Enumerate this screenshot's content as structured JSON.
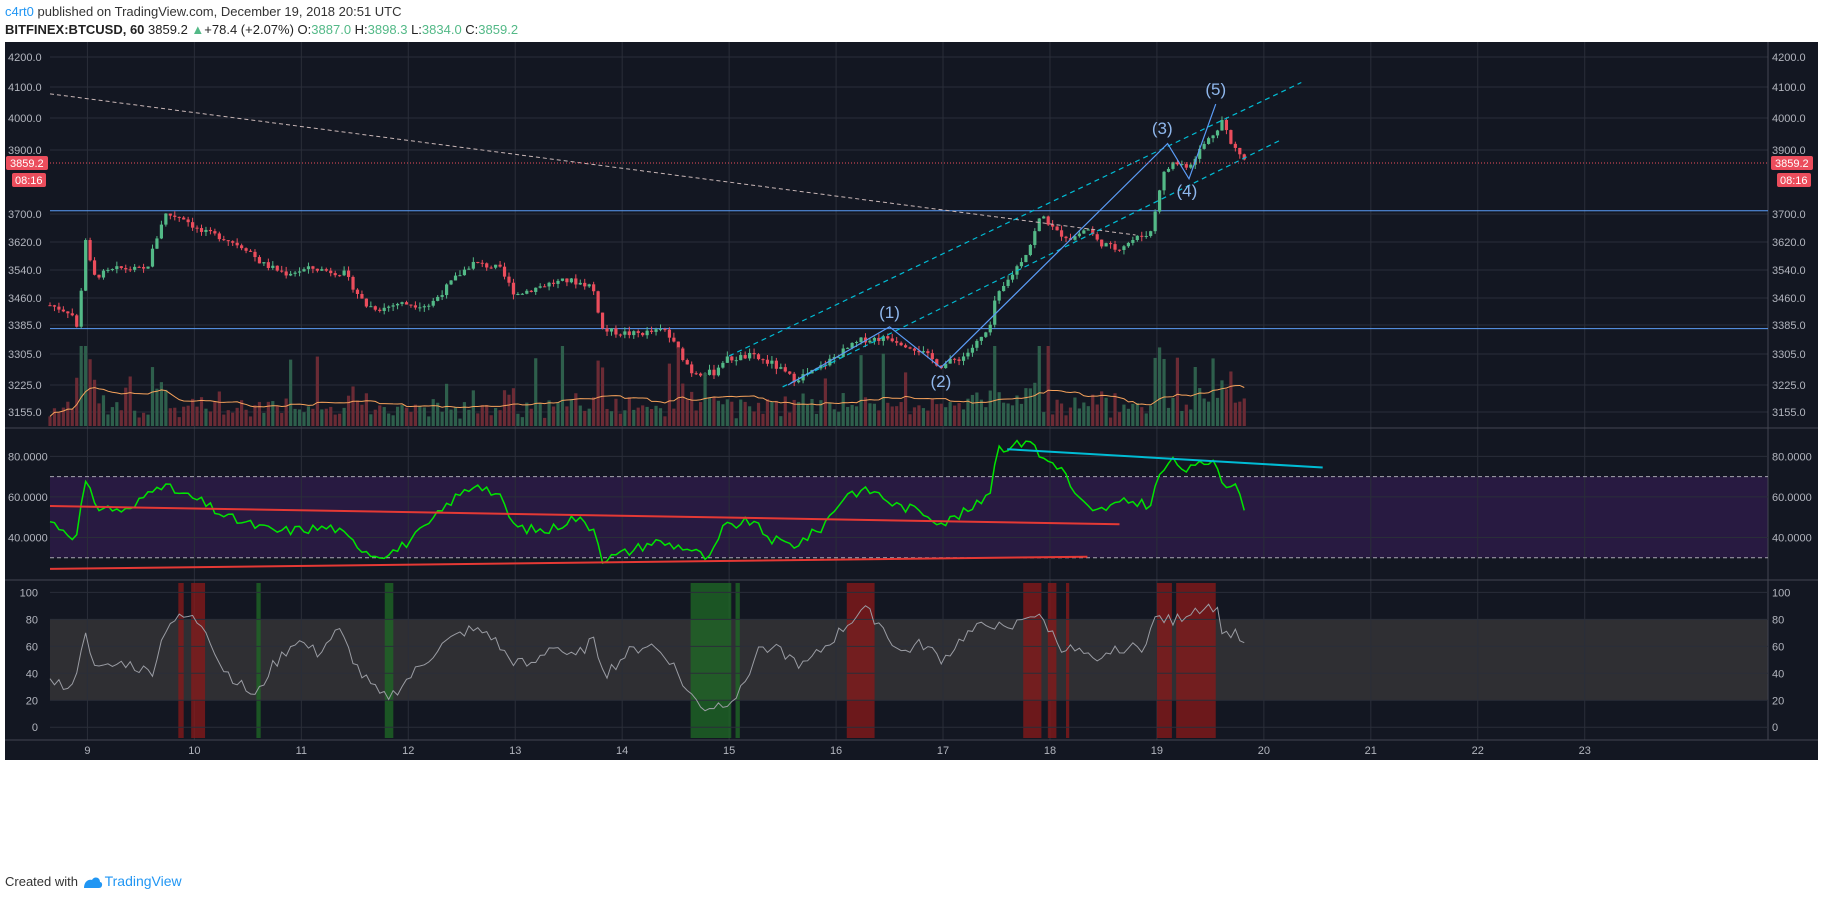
{
  "header": {
    "author": "c4rt0",
    "published_text": "published on TradingView.com, December 19, 2018 20:51 UTC",
    "symbol": "BITFINEX:BTCUSD, 60",
    "last": "3859.2",
    "change": "+78.4 (+2.07%)",
    "o_label": "O:",
    "o_value": "3887.0",
    "h_label": "H:",
    "h_value": "3898.3",
    "l_label": "L:",
    "l_value": "3834.0",
    "c_label": "C:",
    "c_value": "3859.2"
  },
  "footer": {
    "created_with": "Created with",
    "brand": "TradingView"
  },
  "colors": {
    "background": "#131722",
    "grid": "#2a2e39",
    "up": "#53b987",
    "down": "#eb4d5c",
    "wave": "#5b9cf6",
    "channel": "#00bcd4",
    "rsi": "#00e600",
    "rsi_band": "#2b1b45",
    "stoch_band": "#2f2f33",
    "red_zone": "#8b1a1a",
    "green_zone": "#1f6b25",
    "ma": "#f7a35c",
    "price_badge": "#eb4d5c"
  },
  "chart_data": [
    {
      "type": "candlestick",
      "title": "BITFINEX:BTCUSD, 60",
      "x_ticks": [
        9,
        10,
        11,
        12,
        13,
        14,
        15,
        16,
        17,
        18,
        19,
        20,
        21,
        22,
        23
      ],
      "xlim": [
        8.65,
        23.75
      ],
      "price_ticks": [
        4200.0,
        4100.0,
        4000.0,
        3900.0,
        3700.0,
        3620.0,
        3540.0,
        3460.0,
        3385.0,
        3305.0,
        3225.0,
        3155.0
      ],
      "price_labels": [
        "4200.0",
        "4100.0",
        "4000.0",
        "3900.0",
        "3700.0",
        "3620.0",
        "3540.0",
        "3460.0",
        "3385.0",
        "3305.0",
        "3225.0",
        "3155.0"
      ],
      "last_price": 3859.2,
      "last_price_label": "3859.2",
      "countdown": "08:16",
      "horizontal_levels": [
        3710,
        3375
      ],
      "price_path": [
        [
          8.65,
          3440
        ],
        [
          8.85,
          3420
        ],
        [
          8.92,
          3360
        ],
        [
          8.97,
          3650
        ],
        [
          9.05,
          3520
        ],
        [
          9.3,
          3545
        ],
        [
          9.55,
          3540
        ],
        [
          9.72,
          3700
        ],
        [
          9.9,
          3690
        ],
        [
          10.05,
          3650
        ],
        [
          10.25,
          3635
        ],
        [
          10.5,
          3600
        ],
        [
          10.62,
          3560
        ],
        [
          10.85,
          3530
        ],
        [
          11.1,
          3545
        ],
        [
          11.4,
          3530
        ],
        [
          11.6,
          3440
        ],
        [
          11.75,
          3430
        ],
        [
          11.9,
          3445
        ],
        [
          12.2,
          3440
        ],
        [
          12.45,
          3520
        ],
        [
          12.6,
          3560
        ],
        [
          12.85,
          3545
        ],
        [
          13.0,
          3470
        ],
        [
          13.3,
          3500
        ],
        [
          13.5,
          3510
        ],
        [
          13.72,
          3495
        ],
        [
          13.82,
          3370
        ],
        [
          14.1,
          3360
        ],
        [
          14.4,
          3370
        ],
        [
          14.65,
          3260
        ],
        [
          14.85,
          3255
        ],
        [
          14.95,
          3290
        ],
        [
          15.2,
          3300
        ],
        [
          15.4,
          3280
        ],
        [
          15.6,
          3240
        ],
        [
          15.8,
          3260
        ],
        [
          16.05,
          3310
        ],
        [
          16.25,
          3345
        ],
        [
          16.5,
          3350
        ],
        [
          16.75,
          3320
        ],
        [
          16.98,
          3275
        ],
        [
          17.2,
          3300
        ],
        [
          17.38,
          3355
        ],
        [
          17.45,
          3380
        ],
        [
          17.48,
          3450
        ],
        [
          17.65,
          3530
        ],
        [
          17.8,
          3600
        ],
        [
          17.92,
          3700
        ],
        [
          18.05,
          3650
        ],
        [
          18.2,
          3630
        ],
        [
          18.35,
          3660
        ],
        [
          18.45,
          3620
        ],
        [
          18.62,
          3600
        ],
        [
          18.8,
          3630
        ],
        [
          18.95,
          3650
        ],
        [
          19.0,
          3740
        ],
        [
          19.05,
          3820
        ],
        [
          19.15,
          3860
        ],
        [
          19.3,
          3850
        ],
        [
          19.42,
          3910
        ],
        [
          19.55,
          3960
        ],
        [
          19.62,
          4000
        ],
        [
          19.68,
          3920
        ],
        [
          19.75,
          3900
        ],
        [
          19.84,
          3859
        ]
      ],
      "volume_ma": true
    },
    {
      "type": "line",
      "name": "RSI",
      "ylim": [
        20,
        92
      ],
      "y_ticks": [
        80,
        60,
        40
      ],
      "y_tick_labels": [
        "80.0000",
        "60.0000",
        "40.0000"
      ],
      "band": [
        30,
        70
      ],
      "values": [
        [
          8.65,
          48
        ],
        [
          8.9,
          40
        ],
        [
          8.97,
          67
        ],
        [
          9.1,
          55
        ],
        [
          9.4,
          53
        ],
        [
          9.65,
          67
        ],
        [
          9.85,
          62
        ],
        [
          10.05,
          58
        ],
        [
          10.3,
          50
        ],
        [
          10.55,
          46
        ],
        [
          10.75,
          43
        ],
        [
          11.0,
          44
        ],
        [
          11.3,
          45
        ],
        [
          11.5,
          37
        ],
        [
          11.7,
          31
        ],
        [
          11.9,
          34
        ],
        [
          12.15,
          44
        ],
        [
          12.4,
          58
        ],
        [
          12.65,
          67
        ],
        [
          12.85,
          60
        ],
        [
          13.0,
          45
        ],
        [
          13.3,
          43
        ],
        [
          13.55,
          50
        ],
        [
          13.75,
          44
        ],
        [
          13.82,
          29
        ],
        [
          14.0,
          32
        ],
        [
          14.3,
          38
        ],
        [
          14.6,
          35
        ],
        [
          14.82,
          29
        ],
        [
          14.95,
          45
        ],
        [
          15.2,
          48
        ],
        [
          15.4,
          39
        ],
        [
          15.6,
          36
        ],
        [
          15.85,
          44
        ],
        [
          16.1,
          62
        ],
        [
          16.35,
          63
        ],
        [
          16.55,
          56
        ],
        [
          16.8,
          53
        ],
        [
          17.0,
          47
        ],
        [
          17.3,
          55
        ],
        [
          17.45,
          64
        ],
        [
          17.5,
          84
        ],
        [
          17.72,
          86
        ],
        [
          17.8,
          90
        ],
        [
          17.9,
          80
        ],
        [
          18.1,
          75
        ],
        [
          18.25,
          60
        ],
        [
          18.4,
          52
        ],
        [
          18.55,
          55
        ],
        [
          18.75,
          58
        ],
        [
          18.95,
          56
        ],
        [
          19.0,
          68
        ],
        [
          19.12,
          78
        ],
        [
          19.3,
          73
        ],
        [
          19.45,
          77
        ],
        [
          19.55,
          79
        ],
        [
          19.62,
          67
        ],
        [
          19.75,
          64
        ],
        [
          19.84,
          53
        ]
      ],
      "trendlines": [
        {
          "color": "#e53935",
          "from": [
            8.65,
            55.5
          ],
          "to": [
            18.65,
            46.5
          ]
        },
        {
          "color": "#e53935",
          "from": [
            8.65,
            24.5
          ],
          "to": [
            18.35,
            30.5
          ]
        },
        {
          "color": "#00bcd4",
          "from": [
            17.6,
            83.5
          ],
          "to": [
            20.55,
            74.5
          ]
        }
      ]
    },
    {
      "type": "line",
      "name": "Stochastic RSI",
      "ylim": [
        -8,
        107
      ],
      "y_ticks": [
        100,
        80,
        60,
        40,
        20,
        0
      ],
      "y_tick_labels": [
        "100",
        "80",
        "60",
        "40",
        "20",
        "0"
      ],
      "band": [
        20,
        80
      ],
      "values": [
        [
          8.65,
          38
        ],
        [
          8.85,
          25
        ],
        [
          8.97,
          70
        ],
        [
          9.1,
          42
        ],
        [
          9.35,
          48
        ],
        [
          9.6,
          40
        ],
        [
          9.75,
          78
        ],
        [
          9.95,
          82
        ],
        [
          10.1,
          75
        ],
        [
          10.25,
          45
        ],
        [
          10.45,
          30
        ],
        [
          10.58,
          22
        ],
        [
          10.7,
          42
        ],
        [
          10.95,
          65
        ],
        [
          11.15,
          55
        ],
        [
          11.35,
          72
        ],
        [
          11.55,
          40
        ],
        [
          11.75,
          22
        ],
        [
          11.85,
          24
        ],
        [
          12.05,
          40
        ],
        [
          12.3,
          60
        ],
        [
          12.55,
          72
        ],
        [
          12.75,
          70
        ],
        [
          12.95,
          50
        ],
        [
          13.15,
          45
        ],
        [
          13.35,
          62
        ],
        [
          13.55,
          50
        ],
        [
          13.72,
          65
        ],
        [
          13.85,
          40
        ],
        [
          14.05,
          55
        ],
        [
          14.25,
          62
        ],
        [
          14.45,
          50
        ],
        [
          14.62,
          25
        ],
        [
          14.78,
          14
        ],
        [
          14.95,
          18
        ],
        [
          15.1,
          25
        ],
        [
          15.3,
          62
        ],
        [
          15.5,
          55
        ],
        [
          15.7,
          45
        ],
        [
          15.9,
          60
        ],
        [
          16.05,
          72
        ],
        [
          16.25,
          88
        ],
        [
          16.4,
          78
        ],
        [
          16.6,
          55
        ],
        [
          16.8,
          62
        ],
        [
          17.0,
          50
        ],
        [
          17.2,
          68
        ],
        [
          17.45,
          78
        ],
        [
          17.6,
          70
        ],
        [
          17.8,
          85
        ],
        [
          17.95,
          78
        ],
        [
          18.1,
          60
        ],
        [
          18.3,
          55
        ],
        [
          18.45,
          45
        ],
        [
          18.6,
          60
        ],
        [
          18.85,
          58
        ],
        [
          19.0,
          82
        ],
        [
          19.15,
          78
        ],
        [
          19.35,
          88
        ],
        [
          19.55,
          90
        ],
        [
          19.62,
          70
        ],
        [
          19.75,
          68
        ],
        [
          19.84,
          58
        ]
      ],
      "zones": [
        {
          "color": "red",
          "from": 9.85,
          "to": 9.9
        },
        {
          "color": "red",
          "from": 9.97,
          "to": 10.1
        },
        {
          "color": "green",
          "from": 10.58,
          "to": 10.62
        },
        {
          "color": "green",
          "from": 11.78,
          "to": 11.86
        },
        {
          "color": "green",
          "from": 14.64,
          "to": 15.02
        },
        {
          "color": "green",
          "from": 15.06,
          "to": 15.1
        },
        {
          "color": "red",
          "from": 16.1,
          "to": 16.36
        },
        {
          "color": "red",
          "from": 17.75,
          "to": 17.92
        },
        {
          "color": "red",
          "from": 17.98,
          "to": 18.06
        },
        {
          "color": "red",
          "from": 18.15,
          "to": 18.18
        },
        {
          "color": "red",
          "from": 19.0,
          "to": 19.14
        },
        {
          "color": "red",
          "from": 19.18,
          "to": 19.55
        }
      ]
    }
  ],
  "annotations": {
    "wave_labels": [
      "(1)",
      "(2)",
      "(3)",
      "(4)",
      "(5)"
    ]
  }
}
